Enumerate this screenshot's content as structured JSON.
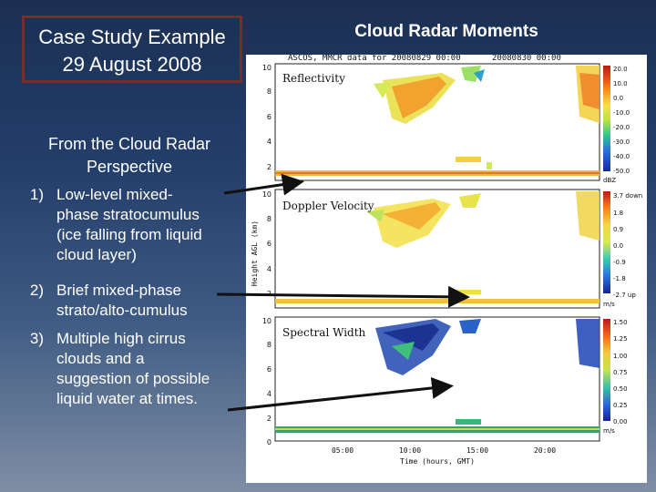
{
  "slide": {
    "title_line1": "Case Study Example",
    "title_line2": "29 August 2008",
    "right_title": "Cloud Radar Moments",
    "subtitle_line1": "From the Cloud Radar",
    "subtitle_line2": "Perspective",
    "list": [
      {
        "num": "1)",
        "lines": [
          "Low-level mixed-",
          "phase stratocumulus",
          "(ice falling from liquid",
          "cloud layer)"
        ]
      },
      {
        "num": "2)",
        "lines": [
          "Brief mixed-phase",
          "strato/alto-cumulus"
        ]
      },
      {
        "num": "3)",
        "lines": [
          "Multiple high cirrus",
          "clouds and a",
          "suggestion of possible",
          "liquid water at times."
        ]
      }
    ]
  },
  "radar": {
    "header_left": "ASCOS, MMCR data for 20080829 00:00",
    "header_right": "20080830 00:00",
    "y_axis_label": "Height AGL (km)",
    "x_axis_label": "Time (hours, GMT)",
    "x_ticks": [
      "05:00",
      "10:00",
      "15:00",
      "20:00"
    ],
    "panels": [
      {
        "label": "Reflectivity",
        "y_ticks": [
          "10",
          "8",
          "6",
          "4",
          "2"
        ],
        "colorbar_ticks": [
          "20.0",
          "10.0",
          "0.0",
          "-10.0",
          "-20.0",
          "-30.0",
          "-40.0",
          "-50.0"
        ],
        "units": "dBZ"
      },
      {
        "label": "Doppler Velocity",
        "y_ticks": [
          "10",
          "8",
          "6",
          "4",
          "2"
        ],
        "colorbar_ticks": [
          "3.7 down",
          "1.8",
          "0.9",
          "0.0",
          "-0.9",
          "-1.8",
          "-2.7 up"
        ],
        "units": "m/s"
      },
      {
        "label": "Spectral Width",
        "y_ticks": [
          "10",
          "8",
          "6",
          "4",
          "2",
          "0"
        ],
        "colorbar_ticks": [
          "1.50",
          "1.25",
          "1.00",
          "0.75",
          "0.50",
          "0.25",
          "0.00"
        ],
        "units": "m/s"
      }
    ]
  }
}
